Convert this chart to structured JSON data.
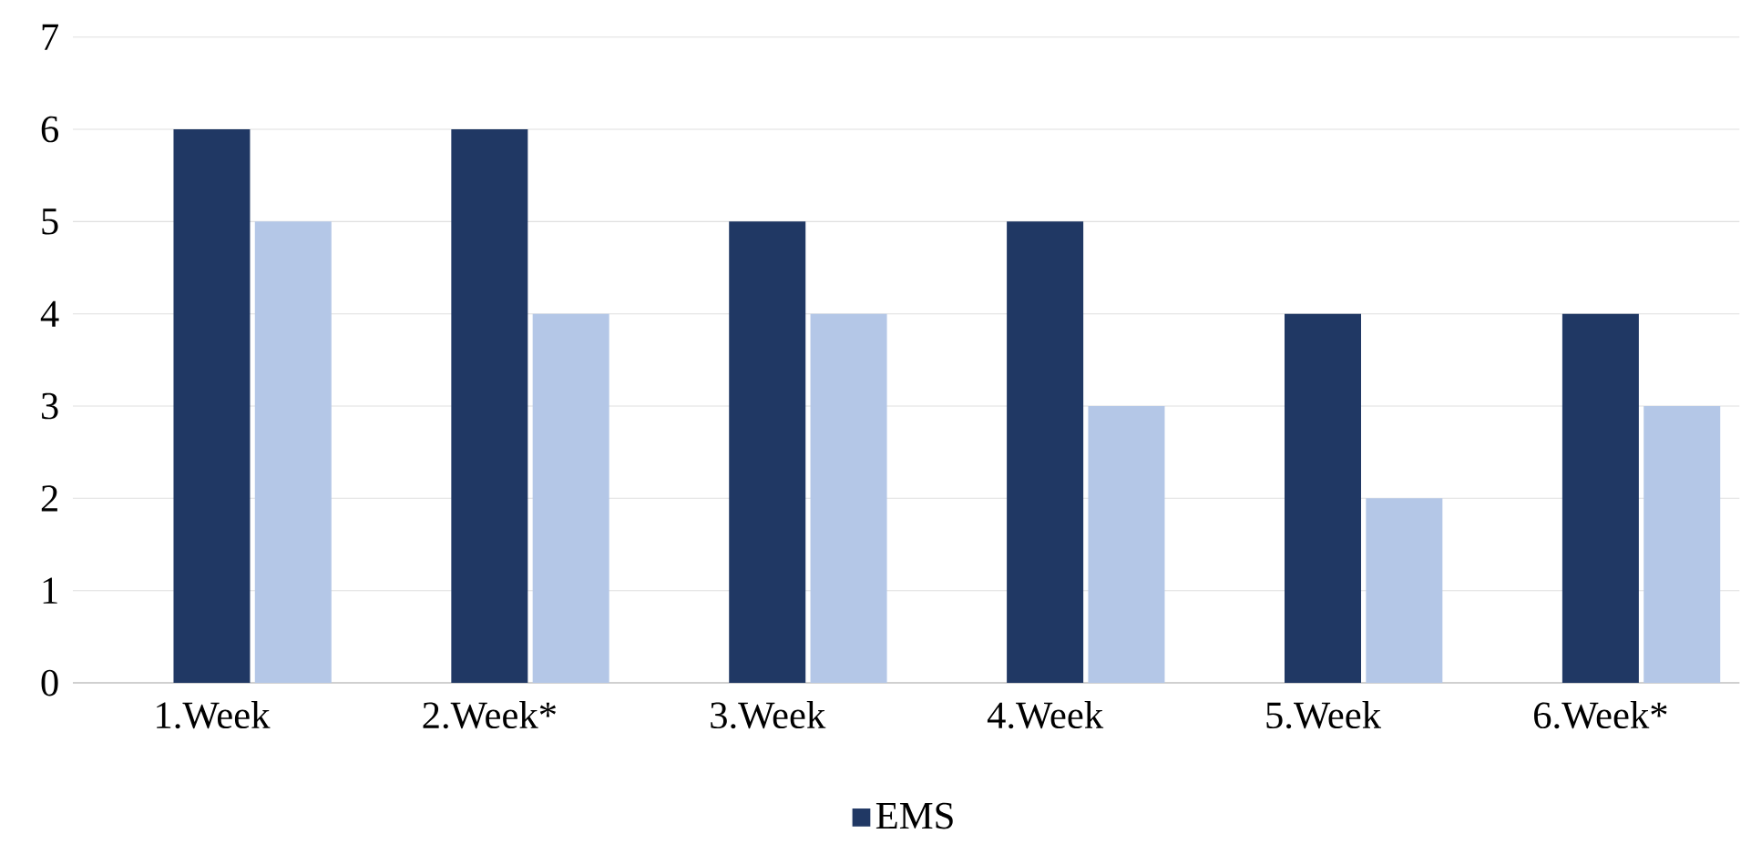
{
  "chart_data": {
    "type": "bar",
    "categories": [
      "1.Week",
      "2.Week*",
      "3.Week",
      "4.Week",
      "5.Week",
      "6.Week*"
    ],
    "series": [
      {
        "name": "EMS",
        "color": "#203864",
        "values": [
          6,
          6,
          5,
          5,
          4,
          4
        ]
      },
      {
        "color": "#b4c7e7",
        "values": [
          5,
          4,
          4,
          3,
          2,
          3
        ]
      }
    ],
    "ylim": [
      0,
      7
    ],
    "yticks": [
      0,
      1,
      2,
      3,
      4,
      5,
      6,
      7
    ],
    "grid": "y",
    "legend": "bottom"
  }
}
